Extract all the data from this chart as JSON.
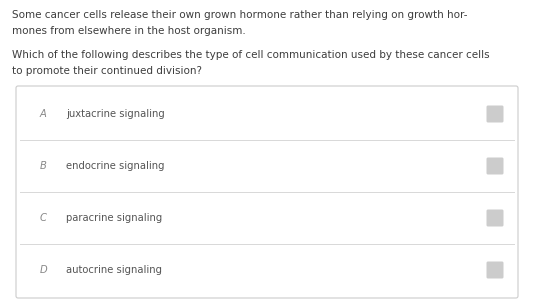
{
  "bg_color": "#ffffff",
  "passage_text_line1": "Some cancer cells release their own grown hormone rather than relying on growth hor-",
  "passage_text_line2": "mones from elsewhere in the host organism.",
  "question_line1": "Which of the following describes the type of cell communication used by these cancer cells",
  "question_line2": "to promote their continued division?",
  "options": [
    {
      "letter": "A",
      "text": "juxtacrine signaling"
    },
    {
      "letter": "B",
      "text": "endocrine signaling"
    },
    {
      "letter": "C",
      "text": "paracrine signaling"
    },
    {
      "letter": "D",
      "text": "autocrine signaling"
    }
  ],
  "passage_color": "#3d3d3d",
  "question_color": "#3d3d3d",
  "letter_color": "#888888",
  "option_text_color": "#555555",
  "box_border_color": "#cccccc",
  "divider_color": "#d8d8d8",
  "radio_color": "#cccccc",
  "passage_fontsize": 7.5,
  "question_fontsize": 7.5,
  "option_fontsize": 7.2,
  "letter_fontsize": 7.2
}
